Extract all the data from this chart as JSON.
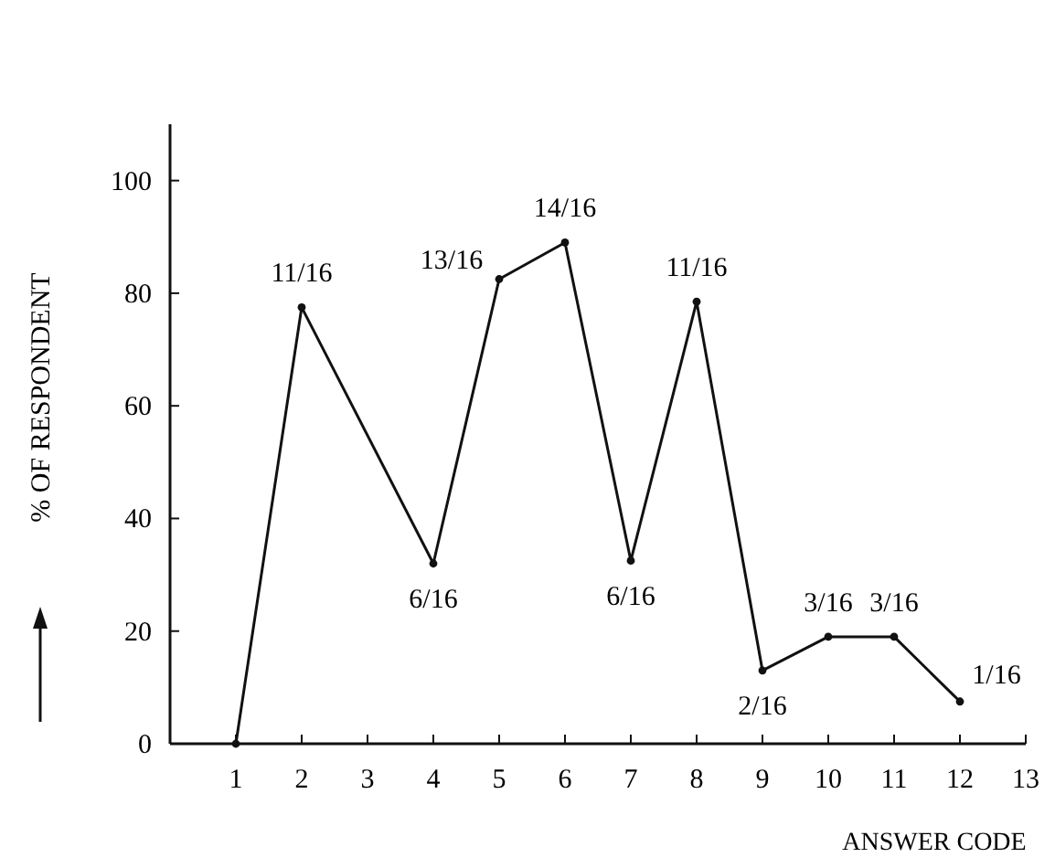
{
  "chart_data": {
    "type": "line",
    "xlabel": "ANSWER CODE",
    "ylabel": "% OF RESPONDENT",
    "x": [
      1,
      2,
      4,
      5,
      6,
      7,
      8,
      9,
      10,
      11,
      12
    ],
    "values": [
      0,
      77.5,
      32,
      82.5,
      89,
      32.5,
      78.5,
      13,
      19,
      19,
      7.5
    ],
    "color": "#111111",
    "marker": "circle",
    "line_style": "solid",
    "grid": false,
    "xlim": [
      0,
      13
    ],
    "xticks": [
      1,
      2,
      3,
      4,
      5,
      6,
      7,
      8,
      9,
      10,
      11,
      12,
      13
    ],
    "ylim": [
      0,
      110
    ],
    "yticks": [
      0,
      20,
      40,
      60,
      80,
      100
    ],
    "annotations": [
      {
        "text": "11/16",
        "x": 2,
        "y": 77.5
      },
      {
        "text": "6/16",
        "x": 4,
        "y": 32
      },
      {
        "text": "13/16",
        "x": 5,
        "y": 82.5
      },
      {
        "text": "14/16",
        "x": 6,
        "y": 89
      },
      {
        "text": "6/16",
        "x": 7,
        "y": 32.5
      },
      {
        "text": "11/16",
        "x": 8,
        "y": 78.5
      },
      {
        "text": "2/16",
        "x": 9,
        "y": 13
      },
      {
        "text": "3/16",
        "x": 10,
        "y": 19
      },
      {
        "text": "3/16",
        "x": 11,
        "y": 19
      },
      {
        "text": "1/16",
        "x": 12,
        "y": 7.5
      }
    ]
  }
}
